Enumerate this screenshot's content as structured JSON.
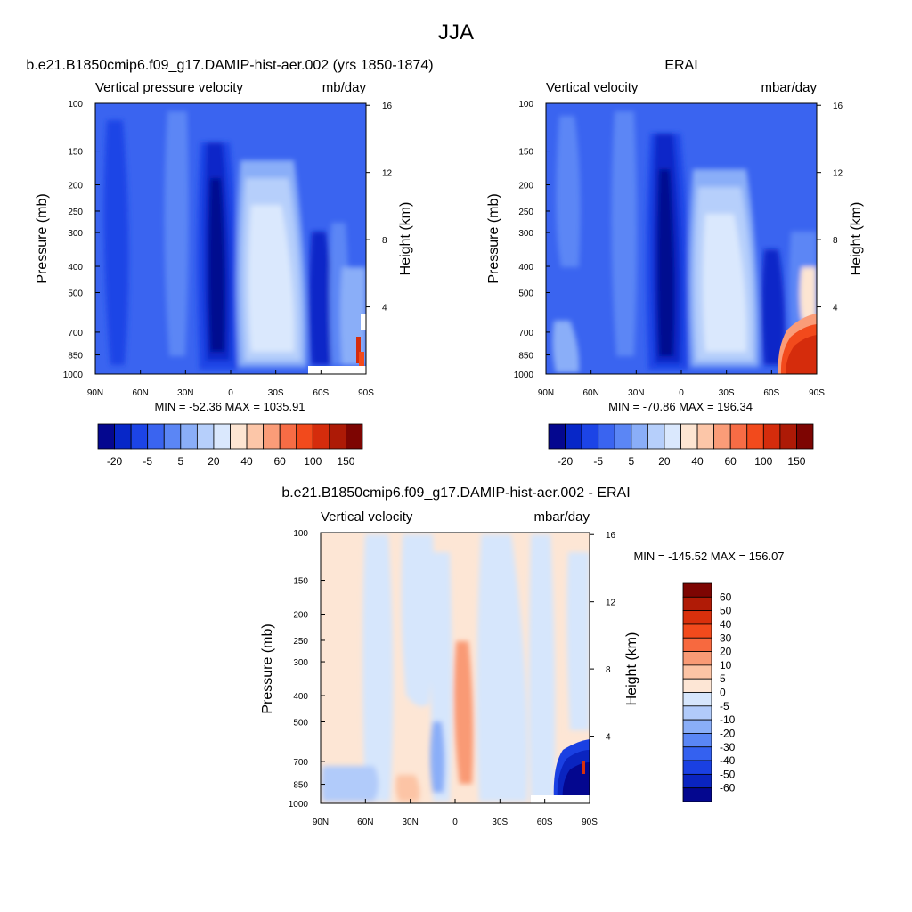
{
  "figure_title": "JJA",
  "chart_data": [
    {
      "type": "heatmap",
      "title": "b.e21.B1850cmip6.f09_g17.DAMIP-hist-aer.002 (yrs 1850-1874)",
      "subtitle_left": "Vertical pressure velocity",
      "subtitle_right": "mb/day",
      "ylabel": "Pressure (mb)",
      "ylabel_right": "Height (km)",
      "x_ticks": [
        "90N",
        "60N",
        "30N",
        "0",
        "30S",
        "60S",
        "90S"
      ],
      "y_ticks": [
        "100",
        "150",
        "200",
        "250",
        "300",
        "400",
        "500",
        "700",
        "850",
        "1000"
      ],
      "y_ticks_right": [
        "16",
        "12",
        "8",
        "4"
      ],
      "min": -52.36,
      "max": 1035.91,
      "stats_text": "MIN = -52.36  MAX = 1035.91",
      "colorbar_labels": [
        "-20",
        "-5",
        "5",
        "20",
        "40",
        "60",
        "100",
        "150"
      ],
      "colorbar_colors": [
        "#04078f",
        "#0727c8",
        "#1c44e6",
        "#3a64f0",
        "#5b86f5",
        "#8aaef8",
        "#b6cffb",
        "#dae8fd",
        "#fde5d2",
        "#fcc6a8",
        "#fa9c78",
        "#f76c45",
        "#f24a1c",
        "#d52c0c",
        "#ad1a06",
        "#7d0502"
      ]
    },
    {
      "type": "heatmap",
      "title": "ERAI",
      "subtitle_left": "Vertical velocity",
      "subtitle_right": "mbar/day",
      "ylabel": "Pressure (mb)",
      "ylabel_right": "Height (km)",
      "x_ticks": [
        "90N",
        "60N",
        "30N",
        "0",
        "30S",
        "60S",
        "90S"
      ],
      "y_ticks": [
        "100",
        "150",
        "200",
        "250",
        "300",
        "400",
        "500",
        "700",
        "850",
        "1000"
      ],
      "y_ticks_right": [
        "16",
        "12",
        "8",
        "4"
      ],
      "min": -70.86,
      "max": 196.34,
      "stats_text": "MIN = -70.86  MAX = 196.34",
      "colorbar_labels": [
        "-20",
        "-5",
        "5",
        "20",
        "40",
        "60",
        "100",
        "150"
      ],
      "colorbar_colors": [
        "#04078f",
        "#0727c8",
        "#1c44e6",
        "#3a64f0",
        "#5b86f5",
        "#8aaef8",
        "#b6cffb",
        "#dae8fd",
        "#fde5d2",
        "#fcc6a8",
        "#fa9c78",
        "#f76c45",
        "#f24a1c",
        "#d52c0c",
        "#ad1a06",
        "#7d0502"
      ]
    },
    {
      "type": "heatmap",
      "title": "b.e21.B1850cmip6.f09_g17.DAMIP-hist-aer.002 - ERAI",
      "subtitle_left": "Vertical velocity",
      "subtitle_right": "mbar/day",
      "ylabel": "Pressure (mb)",
      "ylabel_right": "Height (km)",
      "x_ticks": [
        "90N",
        "60N",
        "30N",
        "0",
        "30S",
        "60S",
        "90S"
      ],
      "y_ticks": [
        "100",
        "150",
        "200",
        "250",
        "300",
        "400",
        "500",
        "700",
        "850",
        "1000"
      ],
      "y_ticks_right": [
        "16",
        "12",
        "8",
        "4"
      ],
      "min": -145.52,
      "max": 156.07,
      "stats_text": "MIN = -145.52  MAX = 156.07",
      "colorbar_labels": [
        "60",
        "50",
        "40",
        "30",
        "20",
        "10",
        "5",
        "0",
        "-5",
        "-10",
        "-20",
        "-30",
        "-40",
        "-50",
        "-60"
      ],
      "colorbar_colors": [
        "#7d0502",
        "#b01b06",
        "#d9300c",
        "#f24a1c",
        "#f7693f",
        "#f99a75",
        "#fcc4a5",
        "#fde6d5",
        "#d6e6fc",
        "#b1cbfa",
        "#8aaef8",
        "#5a86f5",
        "#3461f0",
        "#1a40e2",
        "#0a24c0",
        "#04078f"
      ]
    }
  ]
}
